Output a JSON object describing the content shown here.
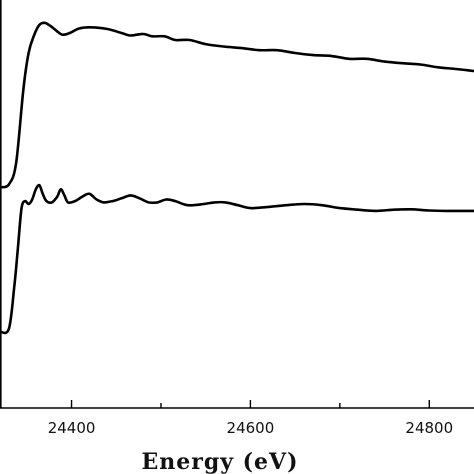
{
  "chart_data": {
    "type": "line",
    "title": "",
    "xlabel": "Energy (eV)",
    "ylabel": "",
    "xlim": [
      24320,
      24850
    ],
    "ylim": [
      0,
      1
    ],
    "x_ticks": [
      24400,
      24600,
      24800
    ],
    "x_tick_labels": [
      "24400",
      "24600",
      "24800"
    ],
    "grid": false,
    "series": [
      {
        "points": [
          [
            24320,
            0.541
          ],
          [
            24330,
            0.548
          ],
          [
            24338,
            0.6
          ],
          [
            24346,
            0.779
          ],
          [
            24352,
            0.87
          ],
          [
            24358,
            0.913
          ],
          [
            24364,
            0.939
          ],
          [
            24370,
            0.944
          ],
          [
            24376,
            0.937
          ],
          [
            24384,
            0.923
          ],
          [
            24390,
            0.915
          ],
          [
            24398,
            0.919
          ],
          [
            24408,
            0.93
          ],
          [
            24420,
            0.933
          ],
          [
            24440,
            0.929
          ],
          [
            24456,
            0.919
          ],
          [
            24466,
            0.913
          ],
          [
            24480,
            0.917
          ],
          [
            24490,
            0.911
          ],
          [
            24504,
            0.911
          ],
          [
            24516,
            0.902
          ],
          [
            24532,
            0.902
          ],
          [
            24550,
            0.892
          ],
          [
            24570,
            0.886
          ],
          [
            24590,
            0.882
          ],
          [
            24610,
            0.877
          ],
          [
            24630,
            0.877
          ],
          [
            24650,
            0.87
          ],
          [
            24670,
            0.865
          ],
          [
            24690,
            0.863
          ],
          [
            24710,
            0.856
          ],
          [
            24730,
            0.856
          ],
          [
            24750,
            0.849
          ],
          [
            24770,
            0.845
          ],
          [
            24790,
            0.842
          ],
          [
            24810,
            0.835
          ],
          [
            24830,
            0.831
          ],
          [
            24850,
            0.826
          ]
        ]
      },
      {
        "points": [
          [
            24320,
            0.187
          ],
          [
            24330,
            0.194
          ],
          [
            24336,
            0.298
          ],
          [
            24340,
            0.392
          ],
          [
            24344,
            0.489
          ],
          [
            24348,
            0.507
          ],
          [
            24352,
            0.5
          ],
          [
            24356,
            0.511
          ],
          [
            24360,
            0.536
          ],
          [
            24364,
            0.546
          ],
          [
            24368,
            0.524
          ],
          [
            24372,
            0.507
          ],
          [
            24378,
            0.504
          ],
          [
            24384,
            0.518
          ],
          [
            24388,
            0.536
          ],
          [
            24392,
            0.521
          ],
          [
            24396,
            0.504
          ],
          [
            24404,
            0.507
          ],
          [
            24412,
            0.518
          ],
          [
            24420,
            0.525
          ],
          [
            24428,
            0.511
          ],
          [
            24436,
            0.504
          ],
          [
            24446,
            0.507
          ],
          [
            24456,
            0.514
          ],
          [
            24466,
            0.521
          ],
          [
            24476,
            0.514
          ],
          [
            24486,
            0.504
          ],
          [
            24496,
            0.504
          ],
          [
            24506,
            0.511
          ],
          [
            24516,
            0.507
          ],
          [
            24530,
            0.497
          ],
          [
            24548,
            0.5
          ],
          [
            24560,
            0.504
          ],
          [
            24572,
            0.504
          ],
          [
            24586,
            0.497
          ],
          [
            24600,
            0.49
          ],
          [
            24620,
            0.493
          ],
          [
            24640,
            0.497
          ],
          [
            24660,
            0.5
          ],
          [
            24680,
            0.497
          ],
          [
            24700,
            0.49
          ],
          [
            24720,
            0.486
          ],
          [
            24740,
            0.483
          ],
          [
            24760,
            0.486
          ],
          [
            24780,
            0.487
          ],
          [
            24800,
            0.484
          ],
          [
            24820,
            0.483
          ],
          [
            24840,
            0.483
          ],
          [
            24850,
            0.483
          ]
        ]
      }
    ]
  }
}
